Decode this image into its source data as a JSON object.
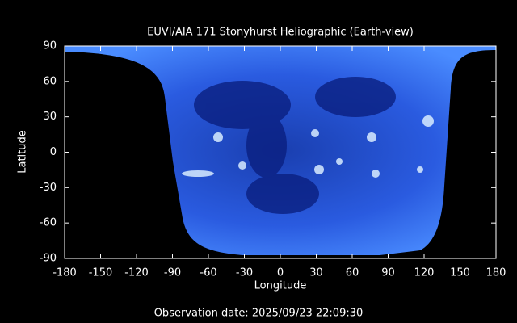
{
  "chart_data": {
    "type": "map",
    "title": "EUVI/AIA 171 Stonyhurst Heliographic (Earth-view)",
    "x_label": "Longitude",
    "y_label": "Latitude",
    "xlim": [
      -180,
      180
    ],
    "xticks": [
      -180,
      -150,
      -120,
      -90,
      -60,
      -30,
      0,
      30,
      60,
      90,
      120,
      150,
      180
    ],
    "ylim": [
      -90,
      90
    ],
    "yticks": [
      -90,
      -60,
      -30,
      0,
      30,
      60,
      90
    ],
    "footer": "Observation date: 2025/09/23 22:09:30"
  }
}
